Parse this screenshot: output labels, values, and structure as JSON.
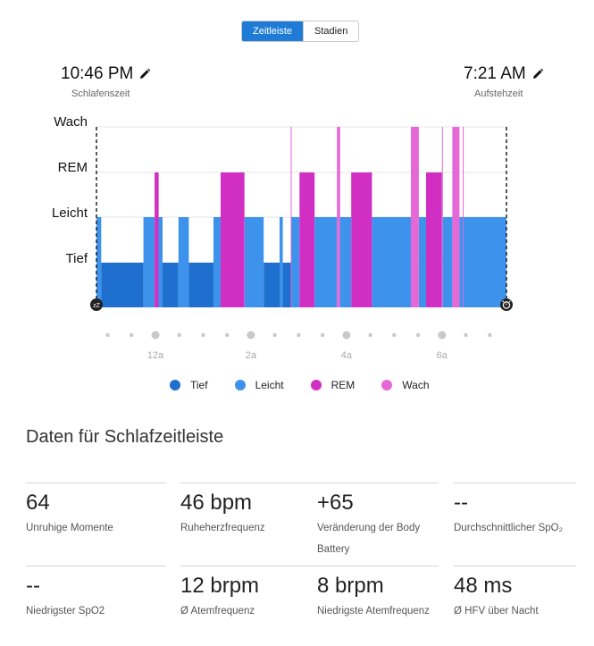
{
  "toggle": {
    "tabs": [
      {
        "label": "Zeitleiste",
        "active": true
      },
      {
        "label": "Stadien",
        "active": false
      }
    ]
  },
  "bedtime": {
    "time": "10:46 PM",
    "label": "Schlafenszeit"
  },
  "wake": {
    "time": "7:21 AM",
    "label": "Aufstehzeit"
  },
  "chart_data": {
    "type": "hypnogram",
    "stages": [
      "Wach",
      "REM",
      "Leicht",
      "Tief"
    ],
    "x_ticks": [
      "12a",
      "2a",
      "4a",
      "6a"
    ],
    "start_time": "22:46",
    "end_time": "07:21",
    "colors": {
      "Tief": "#1f6fcf",
      "Leicht": "#3d92ec",
      "REM": "#d12fc3",
      "Wach": "#e667d6"
    },
    "segments": [
      {
        "start": "22:46",
        "end": "22:52",
        "stage": "Leicht"
      },
      {
        "start": "22:52",
        "end": "23:45",
        "stage": "Tief"
      },
      {
        "start": "23:45",
        "end": "23:59",
        "stage": "Leicht"
      },
      {
        "start": "23:59",
        "end": "00:04",
        "stage": "REM"
      },
      {
        "start": "00:04",
        "end": "00:09",
        "stage": "Leicht"
      },
      {
        "start": "00:09",
        "end": "00:29",
        "stage": "Tief"
      },
      {
        "start": "00:29",
        "end": "00:42",
        "stage": "Leicht"
      },
      {
        "start": "00:42",
        "end": "01:13",
        "stage": "Tief"
      },
      {
        "start": "01:13",
        "end": "01:22",
        "stage": "Leicht"
      },
      {
        "start": "01:22",
        "end": "01:52",
        "stage": "REM"
      },
      {
        "start": "01:52",
        "end": "02:16",
        "stage": "Leicht"
      },
      {
        "start": "02:16",
        "end": "02:36",
        "stage": "Tief"
      },
      {
        "start": "02:36",
        "end": "02:40",
        "stage": "Leicht"
      },
      {
        "start": "02:40",
        "end": "02:50",
        "stage": "Tief"
      },
      {
        "start": "02:50",
        "end": "02:51",
        "stage": "Wach"
      },
      {
        "start": "02:51",
        "end": "03:01",
        "stage": "Leicht"
      },
      {
        "start": "03:01",
        "end": "03:20",
        "stage": "REM"
      },
      {
        "start": "03:20",
        "end": "03:48",
        "stage": "Leicht"
      },
      {
        "start": "03:48",
        "end": "03:52",
        "stage": "Wach"
      },
      {
        "start": "03:52",
        "end": "04:06",
        "stage": "Leicht"
      },
      {
        "start": "04:06",
        "end": "04:32",
        "stage": "REM"
      },
      {
        "start": "04:32",
        "end": "05:21",
        "stage": "Leicht"
      },
      {
        "start": "05:21",
        "end": "05:31",
        "stage": "Wach"
      },
      {
        "start": "05:31",
        "end": "05:40",
        "stage": "Leicht"
      },
      {
        "start": "05:40",
        "end": "06:00",
        "stage": "REM"
      },
      {
        "start": "06:00",
        "end": "06:01",
        "stage": "Wach"
      },
      {
        "start": "06:01",
        "end": "06:13",
        "stage": "Leicht"
      },
      {
        "start": "06:13",
        "end": "06:22",
        "stage": "Wach"
      },
      {
        "start": "06:22",
        "end": "06:26",
        "stage": "Leicht"
      },
      {
        "start": "06:26",
        "end": "06:27",
        "stage": "Wach"
      },
      {
        "start": "06:27",
        "end": "07:21",
        "stage": "Leicht"
      }
    ]
  },
  "legend": [
    {
      "label": "Tief",
      "color": "#1f6fcf"
    },
    {
      "label": "Leicht",
      "color": "#3d92ec"
    },
    {
      "label": "REM",
      "color": "#d12fc3"
    },
    {
      "label": "Wach",
      "color": "#e667d6"
    }
  ],
  "section_title": "Daten für Schlafzeitleiste",
  "metrics": [
    {
      "value": "64",
      "label": "Unruhige Momente"
    },
    {
      "value": "46 bpm",
      "label": "Ruheherzfrequenz"
    },
    {
      "value": "+65",
      "label": "Veränderung der Body Battery"
    },
    {
      "value": "--",
      "label": "Durchschnittlicher SpO₂"
    },
    {
      "value": "--",
      "label": "Niedrigster SpO2"
    },
    {
      "value": "12 brpm",
      "label": "Ø Atemfrequenz"
    },
    {
      "value": "8 brpm",
      "label": "Niedrigste Atemfrequenz"
    },
    {
      "value": "48 ms",
      "label": "Ø HFV über Nacht"
    }
  ]
}
